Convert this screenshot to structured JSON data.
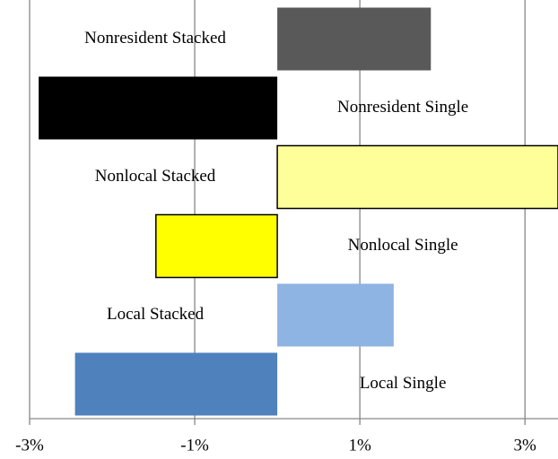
{
  "chart_data": {
    "type": "hbar",
    "categories": [
      "Nonresident Stacked",
      "Nonresident Single",
      "Nonlocal Stacked",
      "Nonlocal Single",
      "Local Stacked",
      "Local Single"
    ],
    "values": [
      1.86,
      -2.89,
      3.4,
      -1.47,
      1.41,
      -2.45
    ],
    "colors": [
      "#595959",
      "#000000",
      "#ffff99",
      "#ffff00",
      "#8db4e2",
      "#4f81bd"
    ],
    "outlined": [
      false,
      false,
      true,
      true,
      false,
      false
    ],
    "xlim": [
      -3,
      3.4
    ],
    "xticks": [
      {
        "value": -3,
        "label": "-3%"
      },
      {
        "value": -1,
        "label": "-1%"
      },
      {
        "value": 1,
        "label": "1%"
      },
      {
        "value": 3,
        "label": "3%"
      }
    ],
    "grid": true
  }
}
